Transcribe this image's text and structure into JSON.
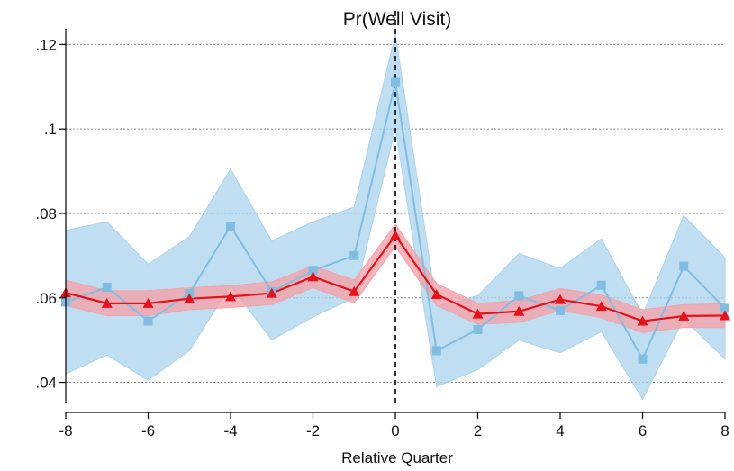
{
  "chart_data": {
    "type": "line",
    "title": "Pr(Well Visit)",
    "xlabel": "Relative Quarter",
    "ylabel": "",
    "xlim": [
      -8,
      8
    ],
    "ylim": [
      0.035,
      0.122
    ],
    "x_ticks": [
      -8,
      -6,
      -4,
      -2,
      0,
      2,
      4,
      6,
      8
    ],
    "x_tick_labels": [
      "-8",
      "-6",
      "-4",
      "-2",
      "0",
      "2",
      "4",
      "6",
      "8"
    ],
    "y_ticks": [
      0.04,
      0.06,
      0.08,
      0.1,
      0.12
    ],
    "y_tick_labels": [
      ".04",
      ".06",
      ".08",
      ".1",
      ".12"
    ],
    "grid": "horizontal dotted",
    "reference_line_x": 0,
    "x": [
      -8,
      -7,
      -6,
      -5,
      -4,
      -3,
      -2,
      -1,
      0,
      1,
      2,
      3,
      4,
      5,
      6,
      7,
      8
    ],
    "series": [
      {
        "marker": "square",
        "color": "#7fbde3",
        "band_color": "#a9d3ee",
        "values": [
          0.059,
          0.0625,
          0.0545,
          0.061,
          0.077,
          0.0615,
          0.0665,
          0.07,
          0.111,
          0.0475,
          0.0525,
          0.0605,
          0.057,
          0.063,
          0.0455,
          0.0675,
          0.0575
        ],
        "ci_lower": [
          0.042,
          0.0465,
          0.0405,
          0.0475,
          0.063,
          0.05,
          0.0555,
          0.06,
          0.1,
          0.039,
          0.043,
          0.05,
          0.047,
          0.052,
          0.036,
          0.055,
          0.0455
        ],
        "ci_upper": [
          0.076,
          0.078,
          0.068,
          0.0745,
          0.0905,
          0.0735,
          0.078,
          0.0815,
          0.1225,
          0.058,
          0.0605,
          0.0705,
          0.067,
          0.074,
          0.056,
          0.0795,
          0.0695
        ]
      },
      {
        "marker": "triangle",
        "color": "#e8101a",
        "band_color": "#f3a3a9",
        "values": [
          0.0612,
          0.0587,
          0.0587,
          0.0598,
          0.0603,
          0.0611,
          0.065,
          0.0615,
          0.0748,
          0.0608,
          0.0562,
          0.0568,
          0.0596,
          0.058,
          0.0545,
          0.0557,
          0.0558
        ],
        "ci_lower": [
          0.0582,
          0.0558,
          0.0558,
          0.0572,
          0.0577,
          0.0584,
          0.0624,
          0.0588,
          0.0722,
          0.0582,
          0.0537,
          0.0542,
          0.057,
          0.0553,
          0.0518,
          0.053,
          0.053
        ],
        "ci_upper": [
          0.0642,
          0.0617,
          0.0617,
          0.0624,
          0.0629,
          0.0638,
          0.0676,
          0.0642,
          0.0774,
          0.0634,
          0.0587,
          0.0594,
          0.0622,
          0.0607,
          0.0572,
          0.0584,
          0.0586
        ]
      }
    ]
  }
}
